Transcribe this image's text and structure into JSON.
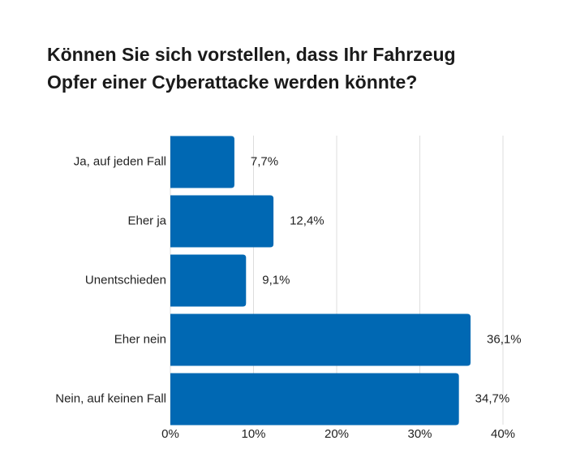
{
  "chart_data": {
    "type": "bar",
    "orientation": "horizontal",
    "title_lines": [
      "Können Sie sich vorstellen, dass Ihr Fahrzeug",
      "Opfer einer Cyberattacke werden könnte?"
    ],
    "categories": [
      "Ja, auf jeden Fall",
      "Eher ja",
      "Unentschieden",
      "Eher nein",
      "Nein, auf keinen Fall"
    ],
    "values": [
      7.7,
      12.4,
      9.1,
      36.1,
      34.7
    ],
    "value_labels": [
      "7,7%",
      "12,4%",
      "9,1%",
      "36,1%",
      "34,7%"
    ],
    "xlim": [
      0,
      40
    ],
    "x_ticks": [
      0,
      10,
      20,
      30,
      40
    ],
    "x_tick_labels": [
      "0%",
      "10%",
      "20%",
      "30%",
      "40%"
    ],
    "grid": true,
    "bar_color": "#0068b3",
    "grid_color": "#dddddd"
  }
}
